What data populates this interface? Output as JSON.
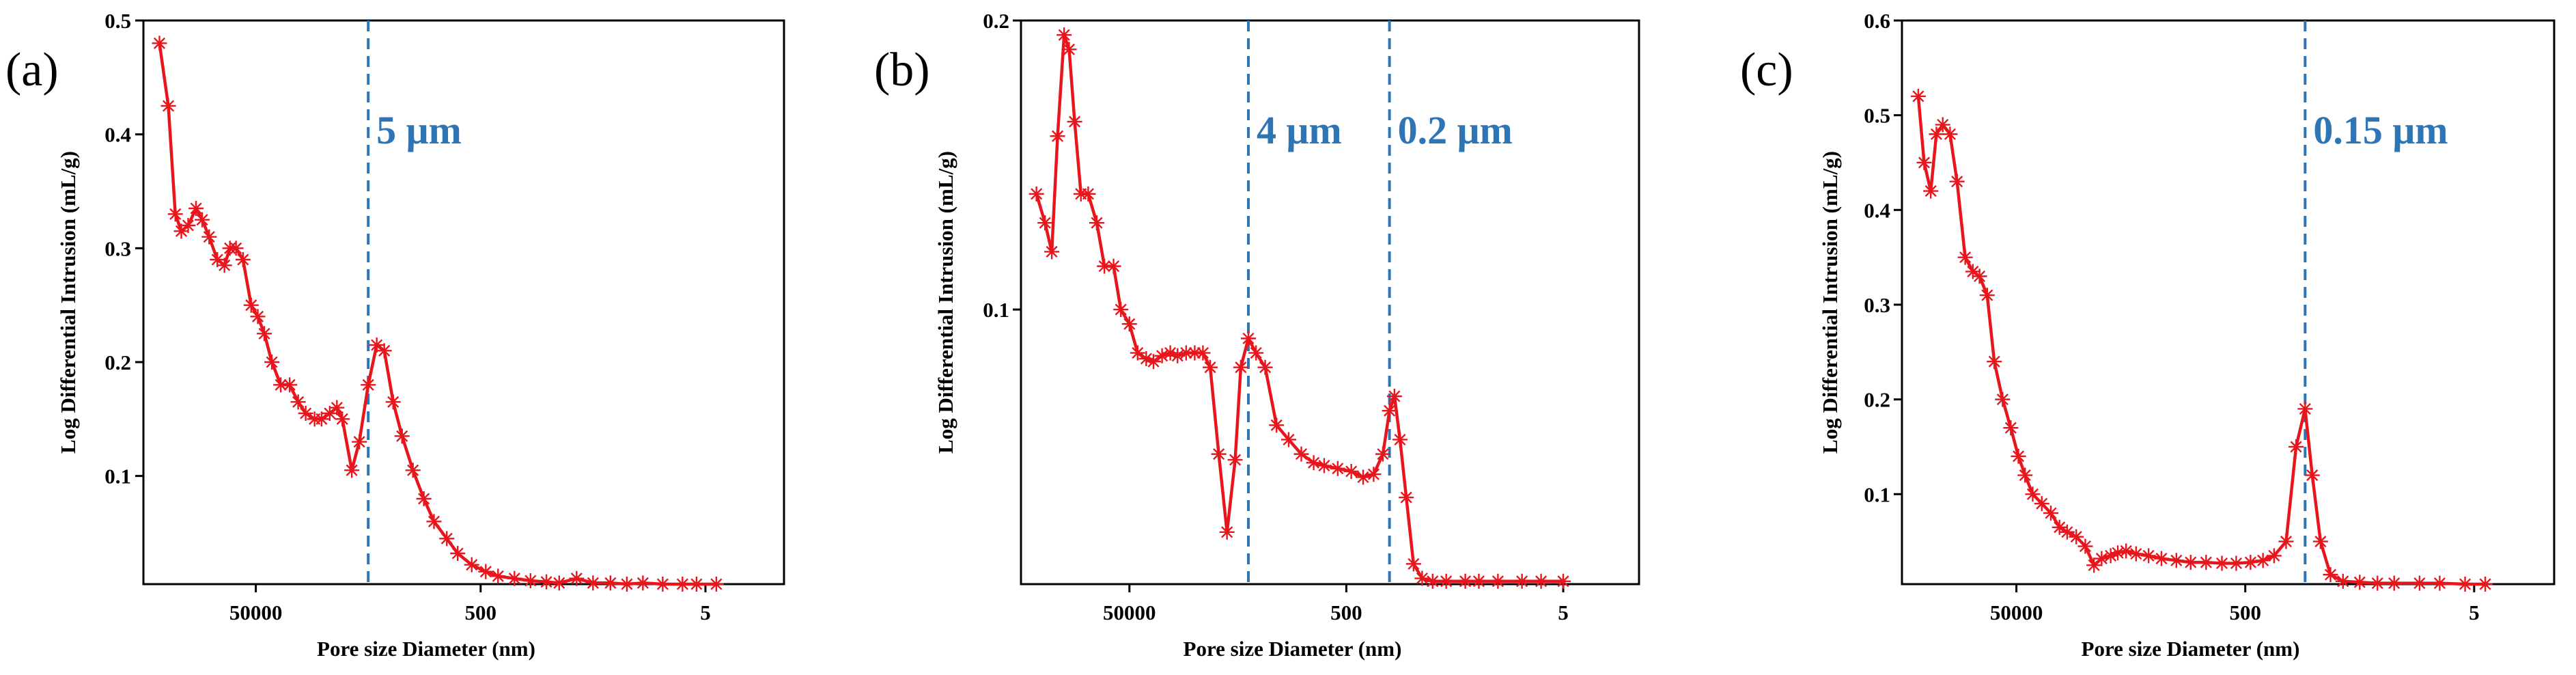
{
  "chart_data": [
    {
      "panel": "(a)",
      "type": "line",
      "xlabel": "Pore size Diameter (nm)",
      "ylabel": "Log Differential Intrusion (mL/g)",
      "x_scale": "log",
      "x_reversed": true,
      "xlim": [
        500000,
        1
      ],
      "ylim": [
        0.005,
        0.5
      ],
      "x_ticks": [
        {
          "value": 50000,
          "label": "50000"
        },
        {
          "value": 500,
          "label": "500"
        },
        {
          "value": 5,
          "label": "5"
        }
      ],
      "y_ticks": [
        {
          "value": 0.1,
          "label": "0.1"
        },
        {
          "value": 0.2,
          "label": "0.2"
        },
        {
          "value": 0.3,
          "label": "0.3"
        },
        {
          "value": 0.4,
          "label": "0.4"
        },
        {
          "value": 0.5,
          "label": "0.5"
        }
      ],
      "reference_lines": [
        {
          "x": 5000,
          "label": "5 μm"
        }
      ],
      "series": [
        {
          "color": "#e8161c",
          "marker": "asterisk",
          "x": [
            360000,
            300000,
            260000,
            230000,
            200000,
            170000,
            150000,
            130000,
            110000,
            95000,
            85000,
            75000,
            65000,
            55000,
            48000,
            42000,
            36000,
            30000,
            25000,
            21000,
            18000,
            15000,
            13000,
            11000,
            9500,
            8500,
            7000,
            6000,
            5000,
            4200,
            3600,
            3000,
            2500,
            2000,
            1600,
            1300,
            1000,
            800,
            600,
            450,
            350,
            250,
            180,
            130,
            100,
            70,
            50,
            35,
            25,
            18,
            12,
            8,
            6,
            4
          ],
          "y": [
            0.48,
            0.425,
            0.33,
            0.315,
            0.32,
            0.335,
            0.325,
            0.31,
            0.29,
            0.285,
            0.3,
            0.3,
            0.29,
            0.25,
            0.24,
            0.225,
            0.2,
            0.18,
            0.18,
            0.165,
            0.155,
            0.15,
            0.15,
            0.155,
            0.16,
            0.15,
            0.105,
            0.13,
            0.18,
            0.215,
            0.21,
            0.165,
            0.135,
            0.105,
            0.08,
            0.06,
            0.045,
            0.032,
            0.022,
            0.016,
            0.012,
            0.01,
            0.008,
            0.007,
            0.006,
            0.01,
            0.006,
            0.006,
            0.005,
            0.006,
            0.005,
            0.005,
            0.005,
            0.005
          ]
        }
      ]
    },
    {
      "panel": "(b)",
      "type": "line",
      "xlabel": "Pore size Diameter (nm)",
      "ylabel": "Log Differential Intrusion (mL/g)",
      "x_scale": "log",
      "x_reversed": true,
      "xlim": [
        500000,
        1
      ],
      "ylim": [
        0.005,
        0.2
      ],
      "x_ticks": [
        {
          "value": 50000,
          "label": "50000"
        },
        {
          "value": 500,
          "label": "500"
        },
        {
          "value": 5,
          "label": "5"
        }
      ],
      "y_ticks": [
        {
          "value": 0.1,
          "label": "0.1"
        },
        {
          "value": 0.2,
          "label": "0.2"
        }
      ],
      "reference_lines": [
        {
          "x": 4000,
          "label": "4 μm"
        },
        {
          "x": 200,
          "label": "0.2 μm"
        }
      ],
      "series": [
        {
          "color": "#e8161c",
          "marker": "asterisk",
          "x": [
            360000,
            300000,
            260000,
            230000,
            200000,
            180000,
            160000,
            140000,
            120000,
            100000,
            85000,
            70000,
            60000,
            50000,
            42000,
            35000,
            30000,
            25000,
            21000,
            18000,
            15000,
            12500,
            10500,
            9000,
            7500,
            6300,
            5300,
            4700,
            4000,
            3400,
            2800,
            2200,
            1700,
            1300,
            1000,
            800,
            600,
            450,
            350,
            280,
            230,
            200,
            180,
            160,
            140,
            120,
            100,
            80,
            60,
            40,
            30,
            20,
            12,
            8,
            5
          ],
          "y": [
            0.14,
            0.13,
            0.12,
            0.16,
            0.195,
            0.19,
            0.165,
            0.14,
            0.14,
            0.13,
            0.115,
            0.115,
            0.1,
            0.095,
            0.085,
            0.083,
            0.082,
            0.084,
            0.085,
            0.084,
            0.085,
            0.085,
            0.085,
            0.08,
            0.05,
            0.023,
            0.048,
            0.08,
            0.09,
            0.085,
            0.08,
            0.06,
            0.055,
            0.05,
            0.047,
            0.046,
            0.045,
            0.044,
            0.042,
            0.043,
            0.05,
            0.065,
            0.07,
            0.055,
            0.035,
            0.012,
            0.007,
            0.006,
            0.006,
            0.006,
            0.006,
            0.006,
            0.006,
            0.006,
            0.006
          ]
        }
      ]
    },
    {
      "panel": "(c)",
      "type": "line",
      "xlabel": "Pore size Diameter (nm)",
      "ylabel": "Log Differential Intrusion (mL/g)",
      "x_scale": "log",
      "x_reversed": true,
      "xlim": [
        500000,
        1
      ],
      "ylim": [
        0.005,
        0.6
      ],
      "x_ticks": [
        {
          "value": 50000,
          "label": "50000"
        },
        {
          "value": 500,
          "label": "500"
        },
        {
          "value": 5,
          "label": "5"
        }
      ],
      "y_ticks": [
        {
          "value": 0.1,
          "label": "0.1"
        },
        {
          "value": 0.2,
          "label": "0.2"
        },
        {
          "value": 0.3,
          "label": "0.3"
        },
        {
          "value": 0.4,
          "label": "0.4"
        },
        {
          "value": 0.5,
          "label": "0.5"
        },
        {
          "value": 0.6,
          "label": "0.6"
        }
      ],
      "reference_lines": [
        {
          "x": 150,
          "label": "0.15 μm"
        }
      ],
      "series": [
        {
          "color": "#e8161c",
          "marker": "asterisk",
          "x": [
            360000,
            320000,
            280000,
            250000,
            220000,
            190000,
            165000,
            140000,
            120000,
            105000,
            90000,
            78000,
            66000,
            56000,
            48000,
            42000,
            36000,
            30000,
            25000,
            21000,
            18000,
            15000,
            12500,
            10500,
            9000,
            7500,
            6500,
            5500,
            4500,
            3500,
            2700,
            2000,
            1500,
            1100,
            800,
            600,
            450,
            350,
            280,
            220,
            180,
            150,
            130,
            110,
            90,
            70,
            50,
            35,
            25,
            15,
            10,
            6,
            4
          ],
          "y": [
            0.52,
            0.45,
            0.42,
            0.48,
            0.49,
            0.48,
            0.43,
            0.35,
            0.335,
            0.33,
            0.31,
            0.24,
            0.2,
            0.17,
            0.14,
            0.12,
            0.1,
            0.09,
            0.08,
            0.065,
            0.06,
            0.055,
            0.045,
            0.025,
            0.032,
            0.035,
            0.038,
            0.04,
            0.037,
            0.035,
            0.032,
            0.03,
            0.028,
            0.028,
            0.027,
            0.027,
            0.028,
            0.03,
            0.035,
            0.05,
            0.15,
            0.19,
            0.12,
            0.05,
            0.015,
            0.008,
            0.007,
            0.006,
            0.006,
            0.006,
            0.006,
            0.005,
            0.005
          ]
        }
      ]
    }
  ]
}
